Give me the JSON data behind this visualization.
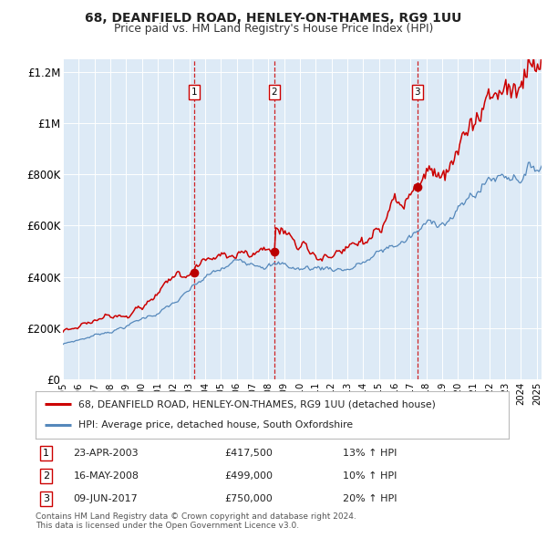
{
  "title": "68, DEANFIELD ROAD, HENLEY-ON-THAMES, RG9 1UU",
  "subtitle": "Price paid vs. HM Land Registry's House Price Index (HPI)",
  "xlim": [
    1995.0,
    2025.3
  ],
  "ylim": [
    0,
    1250000
  ],
  "yticks": [
    0,
    200000,
    400000,
    600000,
    800000,
    1000000,
    1200000
  ],
  "ytick_labels": [
    "£0",
    "£200K",
    "£400K",
    "£600K",
    "£800K",
    "£1M",
    "£1.2M"
  ],
  "xticks": [
    1995,
    1996,
    1997,
    1998,
    1999,
    2000,
    2001,
    2002,
    2003,
    2004,
    2005,
    2006,
    2007,
    2008,
    2009,
    2010,
    2011,
    2012,
    2013,
    2014,
    2015,
    2016,
    2017,
    2018,
    2019,
    2020,
    2021,
    2022,
    2023,
    2024,
    2025
  ],
  "line_color_red": "#cc0000",
  "line_color_blue": "#5588bb",
  "background_color": "#ddeaf6",
  "grid_color": "#ffffff",
  "sale_years": [
    2003.31,
    2008.38,
    2017.44
  ],
  "sale_prices": [
    417500,
    499000,
    750000
  ],
  "vline_color": "#cc0000",
  "legend_entries": [
    "68, DEANFIELD ROAD, HENLEY-ON-THAMES, RG9 1UU (detached house)",
    "HPI: Average price, detached house, South Oxfordshire"
  ],
  "table_rows": [
    {
      "num": "1",
      "date": "23-APR-2003",
      "price": "£417,500",
      "change": "13% ↑ HPI"
    },
    {
      "num": "2",
      "date": "16-MAY-2008",
      "price": "£499,000",
      "change": "10% ↑ HPI"
    },
    {
      "num": "3",
      "date": "09-JUN-2017",
      "price": "£750,000",
      "change": "20% ↑ HPI"
    }
  ],
  "footnote1": "Contains HM Land Registry data © Crown copyright and database right 2024.",
  "footnote2": "This data is licensed under the Open Government Licence v3.0."
}
